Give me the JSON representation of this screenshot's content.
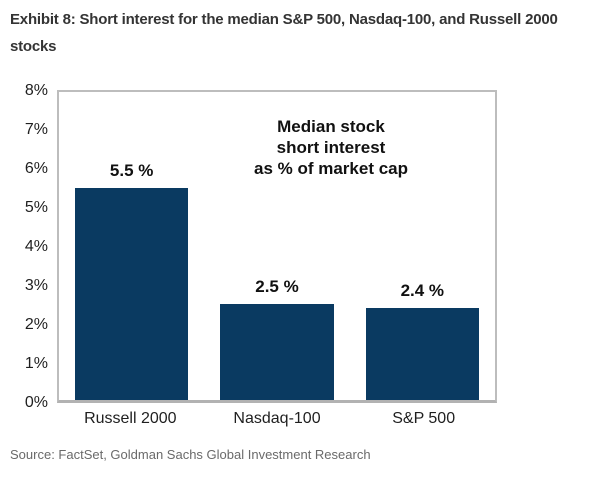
{
  "header": {
    "title": "Exhibit 8: Short interest for the median S&P 500, Nasdaq-100, and Russell 2000 stocks"
  },
  "chart_data": {
    "type": "bar",
    "title": "Median stock short interest as % of market cap",
    "annotation": "Median stock\nshort interest\nas % of market cap",
    "categories": [
      "Russell 2000",
      "Nasdaq-100",
      "S&P 500"
    ],
    "values": [
      5.5,
      2.5,
      2.4
    ],
    "value_labels": [
      "5.5 %",
      "2.5 %",
      "2.4 %"
    ],
    "ylim": [
      0,
      8
    ],
    "yticks": [
      "8%",
      "7%",
      "6%",
      "5%",
      "4%",
      "3%",
      "2%",
      "1%",
      "0%"
    ],
    "grid": false,
    "legend": "none",
    "colors": {
      "bar": "#0a3a61",
      "axis_border": "#bdbdbd",
      "baseline": "#b2b2b2",
      "text": "#111111"
    }
  },
  "footer": {
    "source": "Source: FactSet, Goldman Sachs Global Investment Research"
  }
}
